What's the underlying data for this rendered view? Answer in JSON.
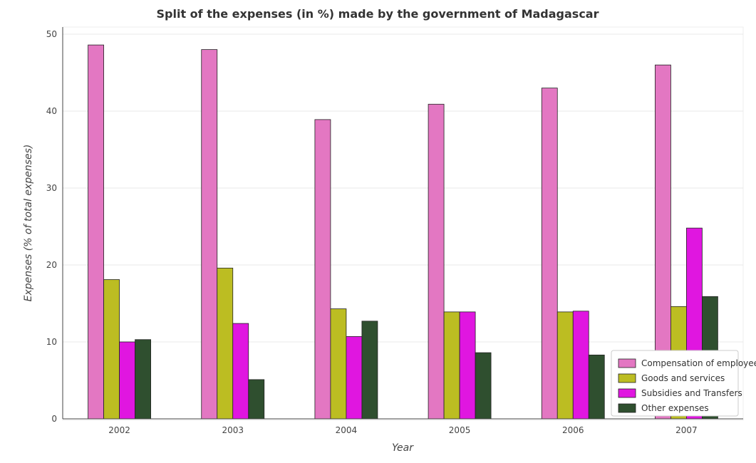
{
  "chart_data": {
    "type": "bar",
    "title": "Split of the expenses (in %) made by the government of Madagascar",
    "xlabel": "Year",
    "ylabel": "Expenses (% of total expenses)",
    "categories": [
      "2002",
      "2003",
      "2004",
      "2005",
      "2006",
      "2007"
    ],
    "ylim": [
      0,
      50
    ],
    "yticks": [
      0,
      10,
      20,
      30,
      40,
      50
    ],
    "grid": true,
    "legend_position": "bottom-right",
    "series": [
      {
        "name": "Compensation of employees",
        "color": "#e377c2",
        "values": [
          48.6,
          48.0,
          38.9,
          40.9,
          43.0,
          46.0
        ]
      },
      {
        "name": "Goods and services",
        "color": "#bcbd22",
        "values": [
          18.1,
          19.6,
          14.3,
          13.9,
          13.9,
          14.6
        ]
      },
      {
        "name": "Subsidies and Transfers",
        "color": "#e016e0",
        "values": [
          10.0,
          12.4,
          10.7,
          13.9,
          14.0,
          24.8
        ]
      },
      {
        "name": "Other expenses",
        "color": "#2f4f2f",
        "values": [
          10.3,
          5.1,
          12.7,
          8.6,
          8.3,
          15.9
        ]
      }
    ]
  }
}
